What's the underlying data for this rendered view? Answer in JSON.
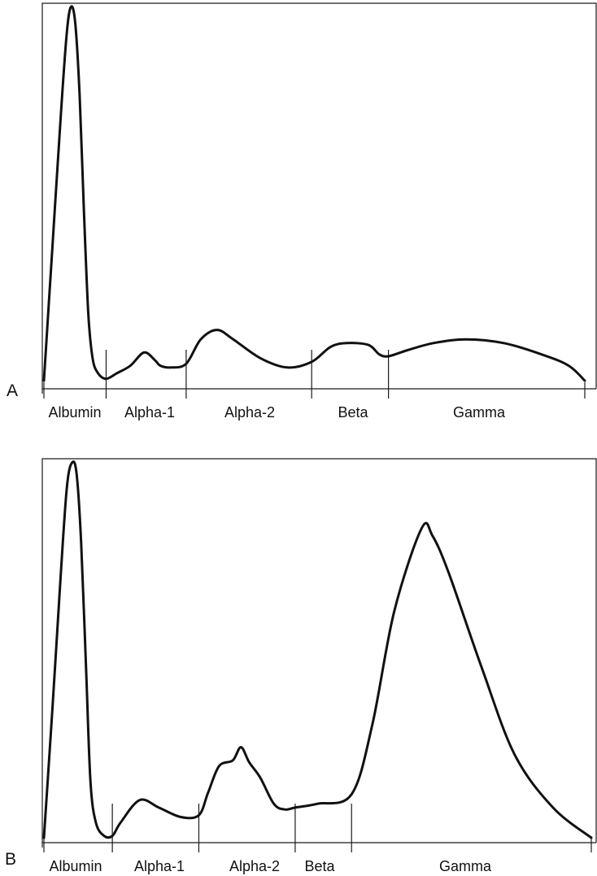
{
  "chart_data": [
    {
      "type": "line",
      "panel": "A",
      "zones": [
        "Albumin",
        "Alpha-1",
        "Alpha-2",
        "Beta",
        "Gamma"
      ],
      "zone_boundaries": [
        0.0,
        0.115,
        0.263,
        0.495,
        0.637,
        1.0
      ],
      "x": [
        0.0,
        0.015,
        0.03,
        0.042,
        0.05,
        0.058,
        0.066,
        0.074,
        0.082,
        0.09,
        0.1,
        0.115,
        0.135,
        0.16,
        0.185,
        0.205,
        0.215,
        0.235,
        0.263,
        0.29,
        0.32,
        0.35,
        0.4,
        0.45,
        0.495,
        0.53,
        0.56,
        0.6,
        0.62,
        0.637,
        0.67,
        0.72,
        0.78,
        0.85,
        0.92,
        0.97,
        1.0
      ],
      "y": [
        0.0,
        0.34,
        0.68,
        0.92,
        0.995,
        0.95,
        0.76,
        0.45,
        0.18,
        0.06,
        0.02,
        0.005,
        0.02,
        0.04,
        0.075,
        0.055,
        0.04,
        0.035,
        0.045,
        0.11,
        0.135,
        0.11,
        0.06,
        0.035,
        0.05,
        0.09,
        0.1,
        0.095,
        0.07,
        0.065,
        0.08,
        0.1,
        0.11,
        0.1,
        0.07,
        0.04,
        0.0
      ],
      "ylim": [
        0,
        1
      ],
      "xlim": [
        0,
        1
      ]
    },
    {
      "type": "line",
      "panel": "B",
      "zones": [
        "Albumin",
        "Alpha-1",
        "Alpha-2",
        "Beta",
        "Gamma"
      ],
      "zone_boundaries": [
        0.0,
        0.125,
        0.283,
        0.459,
        0.562,
        1.0
      ],
      "x": [
        0.0,
        0.015,
        0.03,
        0.042,
        0.052,
        0.06,
        0.068,
        0.077,
        0.085,
        0.095,
        0.11,
        0.125,
        0.14,
        0.175,
        0.21,
        0.25,
        0.283,
        0.3,
        0.32,
        0.345,
        0.36,
        0.375,
        0.395,
        0.42,
        0.44,
        0.459,
        0.5,
        0.562,
        0.6,
        0.64,
        0.69,
        0.71,
        0.74,
        0.8,
        0.86,
        0.93,
        1.0
      ],
      "y": [
        0.0,
        0.33,
        0.68,
        0.93,
        0.995,
        0.96,
        0.78,
        0.45,
        0.15,
        0.04,
        0.005,
        0.005,
        0.04,
        0.1,
        0.08,
        0.055,
        0.06,
        0.12,
        0.19,
        0.205,
        0.24,
        0.2,
        0.16,
        0.09,
        0.075,
        0.08,
        0.09,
        0.115,
        0.3,
        0.6,
        0.82,
        0.8,
        0.7,
        0.45,
        0.22,
        0.08,
        0.0
      ],
      "ylim": [
        0,
        1
      ],
      "xlim": [
        0,
        1
      ]
    }
  ]
}
